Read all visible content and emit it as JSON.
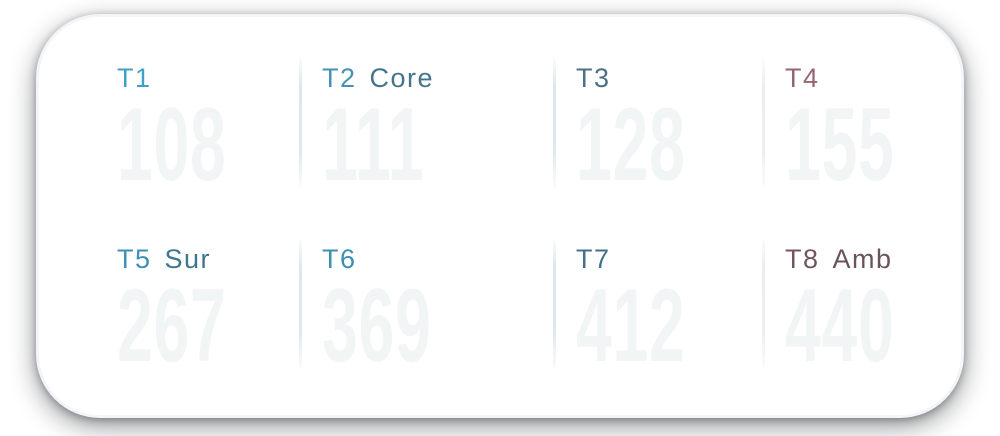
{
  "panel": {
    "value_color": "#F2F5F6",
    "background": {
      "teal_top_left": "#1F4355",
      "maroon_top_right": "#3A2127",
      "bottom_fade": "#0B0D0F",
      "page_outside": "#FFFFFF"
    },
    "cells": [
      {
        "id": "T1",
        "suffix": "",
        "value": "108",
        "id_color": "#3FA0C8",
        "suffix_color": "#3FA0C8"
      },
      {
        "id": "T2",
        "suffix": "Core",
        "value": "111",
        "id_color": "#4792B3",
        "suffix_color": "#44758C"
      },
      {
        "id": "T3",
        "suffix": "",
        "value": "128",
        "id_color": "#4A7186",
        "suffix_color": "#4A7186"
      },
      {
        "id": "T4",
        "suffix": "",
        "value": "155",
        "id_color": "#97646F",
        "suffix_color": "#97646F"
      },
      {
        "id": "T5",
        "suffix": "Sur",
        "value": "267",
        "id_color": "#3C92B4",
        "suffix_color": "#3E7590"
      },
      {
        "id": "T6",
        "suffix": "",
        "value": "369",
        "id_color": "#3E8FB0",
        "suffix_color": "#3E8FB0"
      },
      {
        "id": "T7",
        "suffix": "",
        "value": "412",
        "id_color": "#46708A",
        "suffix_color": "#46708A"
      },
      {
        "id": "T8",
        "suffix": "Amb",
        "value": "440",
        "id_color": "#72565E",
        "suffix_color": "#6C535B"
      }
    ]
  }
}
